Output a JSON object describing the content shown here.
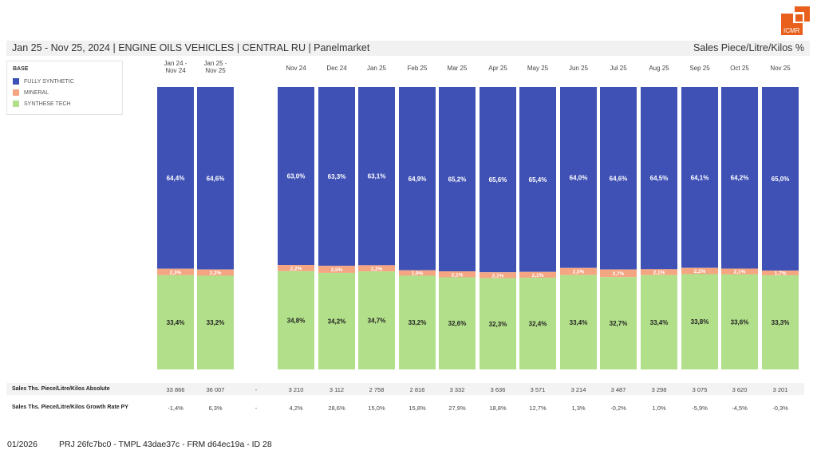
{
  "header": {
    "title": "Jan 25 - Nov 25, 2024 | ENGINE OILS VEHICLES | CENTRAL RU | Panelmarket",
    "measure": "Sales Piece/Litre/Kilos %",
    "logo_text": "ICMR",
    "logo_color": "#e8601c"
  },
  "legend": {
    "title": "BASE",
    "items": [
      {
        "label": "FULLY SYNTHETIC",
        "color": "#3f51b5"
      },
      {
        "label": "MINERAL",
        "color": "#f4a582"
      },
      {
        "label": "SYNTHESE TECH",
        "color": "#b2df8a"
      }
    ]
  },
  "chart_data": {
    "type": "bar",
    "stacked": true,
    "percent": true,
    "title": "Jan 25 - Nov 25, 2024 | ENGINE OILS VEHICLES | CENTRAL RU | Panelmarket",
    "ylabel": "Sales Piece/Litre/Kilos %",
    "ylim": [
      0,
      100
    ],
    "grid": false,
    "legend_position": "top-left",
    "categories": [
      "Jan 24 -\nNov 24",
      "Jan 25 -\nNov 25",
      "",
      "Nov 24",
      "Dec 24",
      "Jan 25",
      "Feb 25",
      "Mar 25",
      "Apr 25",
      "May 25",
      "Jun 25",
      "Jul 25",
      "Aug 25",
      "Sep 25",
      "Oct 25",
      "Nov 25"
    ],
    "series": [
      {
        "name": "FULLY SYNTHETIC",
        "color": "#3f51b5",
        "label_color": "#ffffff",
        "values": [
          64.4,
          64.6,
          null,
          63.0,
          63.3,
          63.1,
          64.9,
          65.2,
          65.6,
          65.4,
          64.0,
          64.6,
          64.5,
          64.1,
          64.2,
          65.0
        ],
        "labels": [
          "64,4%",
          "64,6%",
          "",
          "63,0%",
          "63,3%",
          "63,1%",
          "64,9%",
          "65,2%",
          "65,6%",
          "65,4%",
          "64,0%",
          "64,6%",
          "64,5%",
          "64,1%",
          "64,2%",
          "65,0%"
        ]
      },
      {
        "name": "MINERAL",
        "color": "#f4a582",
        "label_color": "#ffffff",
        "values": [
          2.3,
          2.2,
          null,
          2.2,
          2.5,
          2.2,
          1.9,
          2.1,
          2.1,
          2.1,
          2.5,
          2.7,
          2.1,
          2.2,
          2.1,
          1.7
        ],
        "labels": [
          "2,3%",
          "2,2%",
          "",
          "2,2%",
          "2,5%",
          "2,2%",
          "1,9%",
          "2,1%",
          "2,1%",
          "2,1%",
          "2,5%",
          "2,7%",
          "2,1%",
          "2,2%",
          "2,1%",
          "1,7%"
        ]
      },
      {
        "name": "SYNTHESE TECH",
        "color": "#b2df8a",
        "label_color": "#222222",
        "values": [
          33.4,
          33.2,
          null,
          34.8,
          34.2,
          34.7,
          33.2,
          32.6,
          32.3,
          32.4,
          33.4,
          32.7,
          33.4,
          33.8,
          33.6,
          33.3
        ],
        "labels": [
          "33,4%",
          "33,2%",
          "",
          "34,8%",
          "34,2%",
          "34,7%",
          "33,2%",
          "32,6%",
          "32,3%",
          "32,4%",
          "33,4%",
          "32,7%",
          "33,4%",
          "33,8%",
          "33,6%",
          "33,3%"
        ]
      }
    ]
  },
  "table": {
    "rows": [
      {
        "label": "Sales Ths. Piece/Litre/Kilos Absolute",
        "values": [
          "33 866",
          "36 007",
          "-",
          "3 210",
          "3 112",
          "2 758",
          "2 816",
          "3 332",
          "3 636",
          "3 571",
          "3 214",
          "3 487",
          "3 298",
          "3 075",
          "3 620",
          "3 201"
        ]
      },
      {
        "label": "Sales Ths. Piece/Litre/Kilos Growth Rate PY",
        "values": [
          "-1,4%",
          "6,3%",
          "-",
          "4,2%",
          "28,6%",
          "15,0%",
          "15,8%",
          "27,9%",
          "18,8%",
          "12,7%",
          "1,3%",
          "-0,2%",
          "1,0%",
          "-5,9%",
          "-4,5%",
          "-0,3%"
        ]
      }
    ]
  },
  "footer": {
    "date": "01/2026",
    "id": "PRJ 26fc7bc0 - TMPL 43dae37c - FRM d64ec19a - ID 28"
  }
}
